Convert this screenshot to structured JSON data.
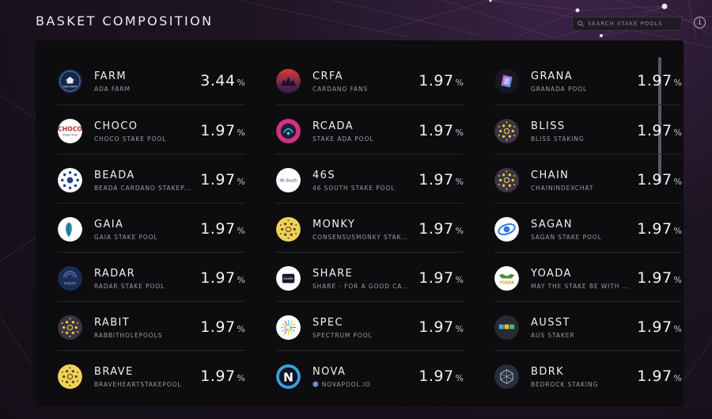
{
  "header": {
    "title": "BASKET COMPOSITION",
    "search_placeholder": "SEARCH STAKE POOLS",
    "info_glyph": "i"
  },
  "columns": [
    [
      {
        "ticker": "FARM",
        "name": "ADA FARM",
        "percent": "3.44",
        "unit": "%",
        "icon": "ada-farm-logo"
      },
      {
        "ticker": "CHOCO",
        "name": "CHOCO STAKE POOL",
        "percent": "1.97",
        "unit": "%",
        "icon": "choco-logo"
      },
      {
        "ticker": "BEADA",
        "name": "BEADA CARDANO STAKEP...",
        "percent": "1.97",
        "unit": "%",
        "icon": "cardano-dots-logo"
      },
      {
        "ticker": "GAIA",
        "name": "GAIA STAKE POOL",
        "percent": "1.97",
        "unit": "%",
        "icon": "gaia-logo"
      },
      {
        "ticker": "RADAR",
        "name": "RADAR STAKE POOL",
        "percent": "1.97",
        "unit": "%",
        "icon": "radar-logo"
      },
      {
        "ticker": "RABIT",
        "name": "RABBITHOLEPOOLS",
        "percent": "1.97",
        "unit": "%",
        "icon": "cardano-default-logo"
      },
      {
        "ticker": "BRAVE",
        "name": "BRAVEHEARTSTAKEPOOL",
        "percent": "1.97",
        "unit": "%",
        "icon": "cardano-yellow-logo"
      }
    ],
    [
      {
        "ticker": "CRFA",
        "name": "CARDANO FANS",
        "percent": "1.97",
        "unit": "%",
        "icon": "crfa-logo"
      },
      {
        "ticker": "RCADA",
        "name": "STAKE ADA POOL",
        "percent": "1.97",
        "unit": "%",
        "icon": "rcada-logo"
      },
      {
        "ticker": "46S",
        "name": "46 SOUTH STAKE POOL",
        "percent": "1.97",
        "unit": "%",
        "icon": "46-south-logo"
      },
      {
        "ticker": "MONKY",
        "name": "CONSENSUSMONKY STAKE...",
        "percent": "1.97",
        "unit": "%",
        "icon": "cardano-yellow-logo"
      },
      {
        "ticker": "SHARE",
        "name": "SHARE - FOR A GOOD CAU...",
        "percent": "1.97",
        "unit": "%",
        "icon": "share-logo"
      },
      {
        "ticker": "SPEC",
        "name": "SPECTRUM POOL",
        "percent": "1.97",
        "unit": "%",
        "icon": "spectrum-logo"
      },
      {
        "ticker": "NOVA",
        "name": "NOVAPOOL.IO",
        "percent": "1.97",
        "unit": "%",
        "icon": "nova-logo",
        "name_glyph": "⬢"
      }
    ],
    [
      {
        "ticker": "GRANA",
        "name": "GRANADA POOL",
        "percent": "1.97",
        "unit": "%",
        "icon": "granada-logo"
      },
      {
        "ticker": "BLISS",
        "name": "BLISS STAKING",
        "percent": "1.97",
        "unit": "%",
        "icon": "cardano-default-logo"
      },
      {
        "ticker": "CHAIN",
        "name": "CHAININDEXCHAT",
        "percent": "1.97",
        "unit": "%",
        "icon": "cardano-default-logo"
      },
      {
        "ticker": "SAGAN",
        "name": "SAGAN STAKE POOL",
        "percent": "1.97",
        "unit": "%",
        "icon": "sagan-logo"
      },
      {
        "ticker": "YOADA",
        "name": "MAY THE STAKE BE WITH Y...",
        "percent": "1.97",
        "unit": "%",
        "icon": "yoada-logo"
      },
      {
        "ticker": "AUSST",
        "name": "AUS STAKER",
        "percent": "1.97",
        "unit": "%",
        "icon": "ausst-logo"
      },
      {
        "ticker": "BDRK",
        "name": "BEDROCK STAKING",
        "percent": "1.97",
        "unit": "%",
        "icon": "bedrock-logo"
      }
    ]
  ],
  "logo_text": {
    "ada-farm-logo": "ADA FARM",
    "choco-logo": "CHOCO",
    "choco-logo-sub": "Stake Pool",
    "46-south-logo": "46 South",
    "radar-logo": "RADAR",
    "share-logo": "SHARE",
    "nova-logo": "N",
    "yoada-logo": "YOADA"
  },
  "colors": {
    "background": "#140f17",
    "panel": "#0d0c0e",
    "divider": "#2a272c",
    "text": "#f3eff6",
    "muted": "#a09aa7"
  }
}
